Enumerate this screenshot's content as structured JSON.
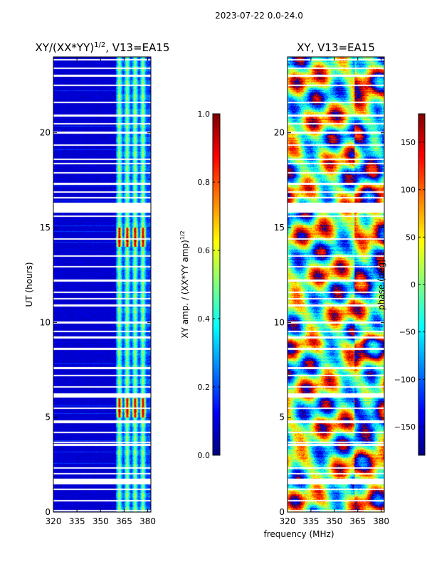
{
  "suptitle": "2023-07-22 0.0-24.0",
  "colors": {
    "jet": [
      "#00007f",
      "#0000ff",
      "#007fff",
      "#00ffff",
      "#7fff7f",
      "#ffff00",
      "#ff7f00",
      "#ff0000",
      "#7f0000"
    ],
    "gap": "#ffffff",
    "axis": "#000000"
  },
  "chart_data": [
    {
      "type": "heatmap",
      "title_main": "XY/(XX*YY)",
      "title_exp": "1/2",
      "title_tail": ", V13=EA15",
      "xlabel": "",
      "ylabel": "UT (hours)",
      "xlim": [
        320,
        382
      ],
      "ylim": [
        0,
        24
      ],
      "xticks": [
        {
          "v": 320,
          "l": "320"
        },
        {
          "v": 335,
          "l": "335"
        },
        {
          "v": 350,
          "l": "350"
        },
        {
          "v": 365,
          "l": "365"
        },
        {
          "v": 380,
          "l": "380"
        }
      ],
      "yticks": [
        {
          "v": 0,
          "l": "0"
        },
        {
          "v": 5,
          "l": "5"
        },
        {
          "v": 10,
          "l": "10"
        },
        {
          "v": 15,
          "l": "15"
        },
        {
          "v": 20,
          "l": "20"
        }
      ],
      "value_range": [
        0.0,
        1.0
      ],
      "active_channels_mhz": [
        360,
        382
      ],
      "bright_channels_mhz": [
        362,
        367,
        372,
        377
      ],
      "high_amplitude_intervals_hours": [
        [
          14.0,
          15.0
        ],
        [
          5.0,
          6.0
        ]
      ],
      "colorbar": {
        "label_main": "XY amp. / (XX*YY amp)",
        "label_exp": "1/2",
        "min": 0.0,
        "max": 1.0,
        "ticks": [
          {
            "v": 0.0,
            "l": "0.0"
          },
          {
            "v": 0.2,
            "l": "0.2"
          },
          {
            "v": 0.4,
            "l": "0.4"
          },
          {
            "v": 0.6,
            "l": "0.6"
          },
          {
            "v": 0.8,
            "l": "0.8"
          },
          {
            "v": 1.0,
            "l": "1.0"
          }
        ]
      }
    },
    {
      "type": "heatmap",
      "title_main": "XY, V13=EA15",
      "title_exp": "",
      "title_tail": "",
      "xlabel": "frequency (MHz)",
      "ylabel": "",
      "xlim": [
        320,
        382
      ],
      "ylim": [
        0,
        24
      ],
      "xticks": [
        {
          "v": 320,
          "l": "320"
        },
        {
          "v": 335,
          "l": "335"
        },
        {
          "v": 350,
          "l": "350"
        },
        {
          "v": 365,
          "l": "365"
        },
        {
          "v": 380,
          "l": "380"
        }
      ],
      "yticks": [
        {
          "v": 0,
          "l": "0"
        },
        {
          "v": 5,
          "l": "5"
        },
        {
          "v": 10,
          "l": "10"
        },
        {
          "v": 15,
          "l": "15"
        },
        {
          "v": 20,
          "l": "20"
        }
      ],
      "value_range": [
        -180,
        180
      ],
      "colorbar": {
        "label_main": "phase (deg)",
        "label_exp": "",
        "min": -180,
        "max": 180,
        "ticks": [
          {
            "v": -150,
            "l": "−150"
          },
          {
            "v": -100,
            "l": "−100"
          },
          {
            "v": -50,
            "l": "−50"
          },
          {
            "v": 0,
            "l": "0"
          },
          {
            "v": 50,
            "l": "50"
          },
          {
            "v": 100,
            "l": "100"
          },
          {
            "v": 150,
            "l": "150"
          }
        ]
      }
    }
  ],
  "flagged_intervals_hours": [
    [
      0.05,
      0.12
    ],
    [
      0.55,
      0.65
    ],
    [
      1.15,
      1.25
    ],
    [
      1.45,
      1.75
    ],
    [
      2.0,
      2.08
    ],
    [
      2.3,
      2.38
    ],
    [
      3.5,
      3.6
    ],
    [
      3.65,
      3.72
    ],
    [
      4.15,
      4.22
    ],
    [
      4.7,
      4.82
    ],
    [
      5.45,
      5.5
    ],
    [
      6.05,
      6.25
    ],
    [
      6.55,
      6.62
    ],
    [
      7.15,
      7.25
    ],
    [
      7.55,
      7.65
    ],
    [
      8.55,
      8.65
    ],
    [
      9.15,
      9.25
    ],
    [
      9.5,
      9.58
    ],
    [
      9.95,
      10.05
    ],
    [
      10.85,
      10.95
    ],
    [
      11.2,
      11.28
    ],
    [
      11.55,
      11.62
    ],
    [
      12.15,
      12.25
    ],
    [
      12.9,
      12.98
    ],
    [
      13.45,
      13.52
    ],
    [
      14.35,
      14.42
    ],
    [
      15.55,
      15.62
    ],
    [
      15.8,
      16.3
    ],
    [
      16.55,
      16.62
    ],
    [
      16.85,
      16.9
    ],
    [
      17.25,
      17.35
    ],
    [
      17.85,
      17.92
    ],
    [
      18.35,
      18.42
    ],
    [
      18.55,
      18.62
    ],
    [
      19.3,
      19.38
    ],
    [
      19.95,
      20.05
    ],
    [
      20.45,
      20.52
    ],
    [
      20.85,
      20.95
    ],
    [
      21.55,
      21.62
    ],
    [
      22.45,
      22.52
    ],
    [
      22.95,
      23.05
    ],
    [
      23.35,
      23.42
    ],
    [
      23.8,
      23.88
    ]
  ]
}
